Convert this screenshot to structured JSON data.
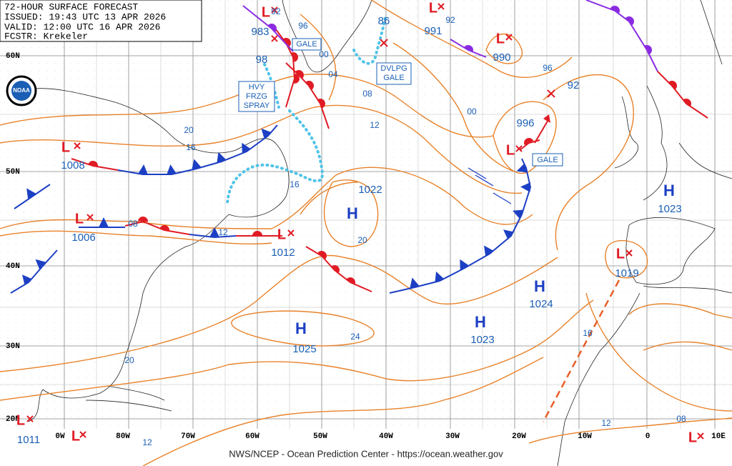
{
  "header": {
    "lines": [
      "72-HOUR SURFACE FORECAST",
      "ISSUED: 19:43 UTC 13 APR 2026",
      "VALID: 12:00 UTC 16 APR 2026",
      "FCSTR: Krekeler"
    ]
  },
  "footer": "NWS/NCEP - Ocean Prediction Center - https://ocean.weather.gov",
  "logo": "NOAA",
  "grid": {
    "lat_labels": [
      "60N",
      "50N",
      "40N",
      "30N",
      "20N"
    ],
    "lon_labels": [
      "0W",
      "80W",
      "70W",
      "60W",
      "50W",
      "40W",
      "30W",
      "20W",
      "10W",
      "0",
      "10E"
    ]
  },
  "centers": [
    {
      "symbol": "L",
      "pressure": "1008"
    },
    {
      "symbol": "L",
      "pressure": "1006"
    },
    {
      "symbol": "L",
      "pressure": "1012"
    },
    {
      "symbol": "L",
      "pressure": "1011"
    },
    {
      "symbol": "L"
    },
    {
      "symbol": "L",
      "pressure": "983"
    },
    {
      "symbol": "H",
      "pressure": "1022"
    },
    {
      "symbol": "H",
      "pressure": "1025"
    },
    {
      "symbol": "H",
      "pressure": "1023"
    },
    {
      "symbol": "H",
      "pressure": "1024"
    },
    {
      "symbol": "H",
      "pressure": "1023"
    },
    {
      "symbol": "L",
      "pressure": "1019"
    },
    {
      "symbol": "L",
      "pressure": "996"
    },
    {
      "symbol": "L",
      "pressure": "990"
    },
    {
      "symbol": "L",
      "pressure": "991"
    },
    {
      "symbol": "L"
    }
  ],
  "other_labels": [
    "98",
    "92",
    "96",
    "86",
    "92",
    "92"
  ],
  "isobar_labels": [
    "20",
    "16",
    "08",
    "12",
    "16",
    "20",
    "04",
    "08",
    "12",
    "00",
    "96",
    "00",
    "24",
    "20",
    "16",
    "12",
    "08",
    "12"
  ],
  "warnings": [
    {
      "lines": [
        "GALE"
      ]
    },
    {
      "lines": [
        "HVY",
        "FRZG",
        "SPRAY"
      ]
    },
    {
      "lines": [
        "DVLPG",
        "GALE"
      ]
    },
    {
      "lines": [
        "GALE"
      ]
    }
  ]
}
